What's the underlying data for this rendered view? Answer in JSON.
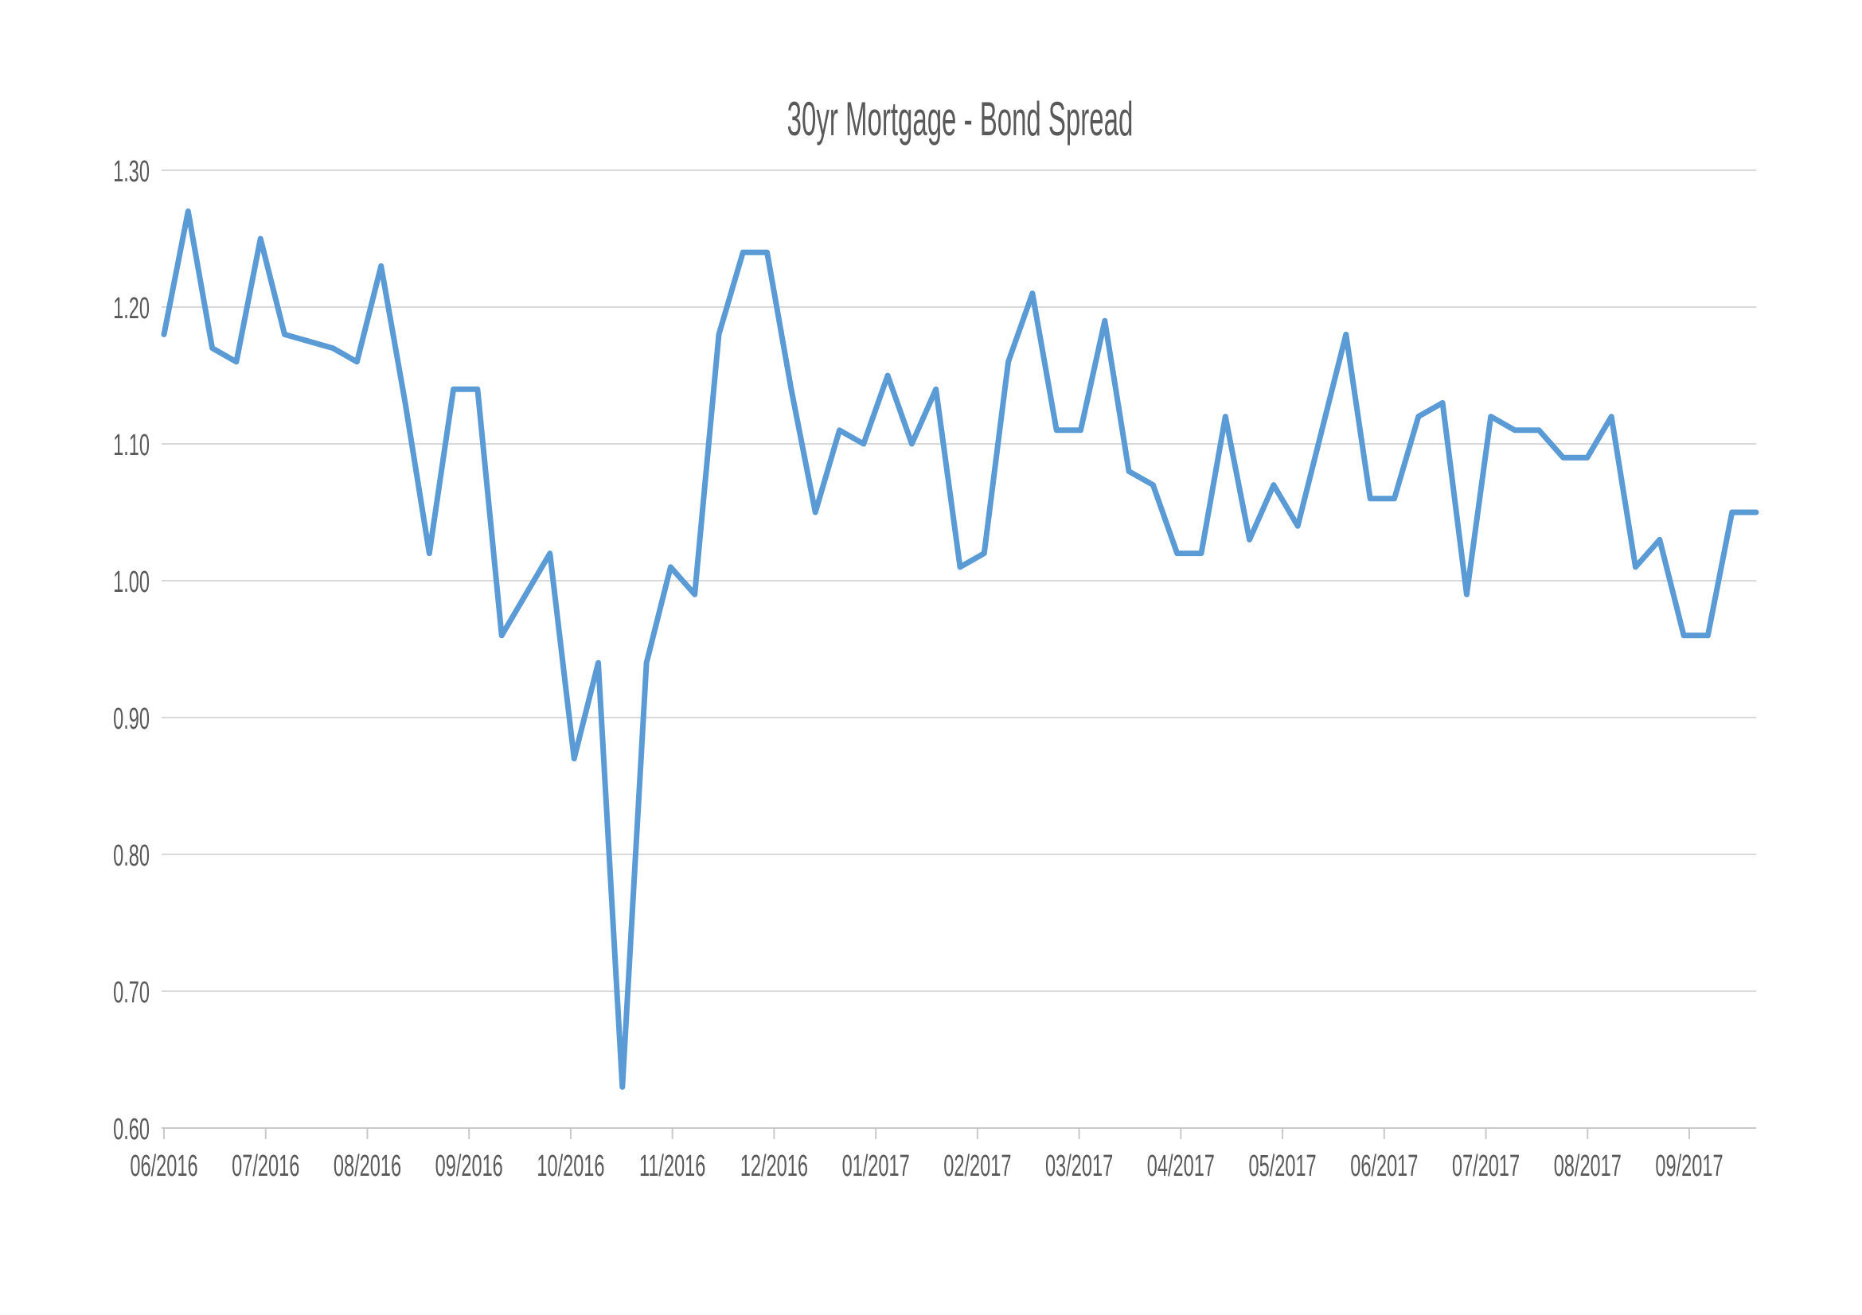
{
  "chart_data": {
    "type": "line",
    "title": "30yr Mortgage - Bond Spread",
    "xlabel": "",
    "ylabel": "",
    "legend": "none",
    "grid": true,
    "x_frequency": "weekly",
    "x_tick_labels": [
      "06/2016",
      "07/2016",
      "08/2016",
      "09/2016",
      "10/2016",
      "11/2016",
      "12/2016",
      "01/2017",
      "02/2017",
      "03/2017",
      "04/2017",
      "05/2017",
      "06/2017",
      "07/2017",
      "08/2017",
      "09/2017"
    ],
    "y_tick_labels": [
      "0.60",
      "0.70",
      "0.80",
      "0.90",
      "1.00",
      "1.10",
      "1.20",
      "1.30"
    ],
    "ylim": [
      0.6,
      1.3
    ],
    "y_tick_step": 0.1,
    "values": [
      1.18,
      1.27,
      1.17,
      1.16,
      1.25,
      1.18,
      1.175,
      1.17,
      1.16,
      1.23,
      1.13,
      1.02,
      1.14,
      1.14,
      0.96,
      0.99,
      1.02,
      0.87,
      0.94,
      0.63,
      0.94,
      1.01,
      0.99,
      1.18,
      1.24,
      1.24,
      1.14,
      1.05,
      1.11,
      1.1,
      1.15,
      1.1,
      1.14,
      1.01,
      1.02,
      1.16,
      1.21,
      1.11,
      1.11,
      1.19,
      1.08,
      1.07,
      1.02,
      1.02,
      1.12,
      1.03,
      1.07,
      1.04,
      1.11,
      1.18,
      1.06,
      1.06,
      1.12,
      1.13,
      0.99,
      1.12,
      1.11,
      1.11,
      1.09,
      1.09,
      1.12,
      1.01,
      1.03,
      0.96,
      0.96,
      1.05,
      1.05
    ],
    "colors": {
      "line": "#5B9BD5",
      "gridline": "#D9D9D9",
      "axis_line": "#C9C9C9",
      "tick_text": "#595959",
      "title_text": "#595959",
      "background": "#FFFFFF"
    }
  }
}
